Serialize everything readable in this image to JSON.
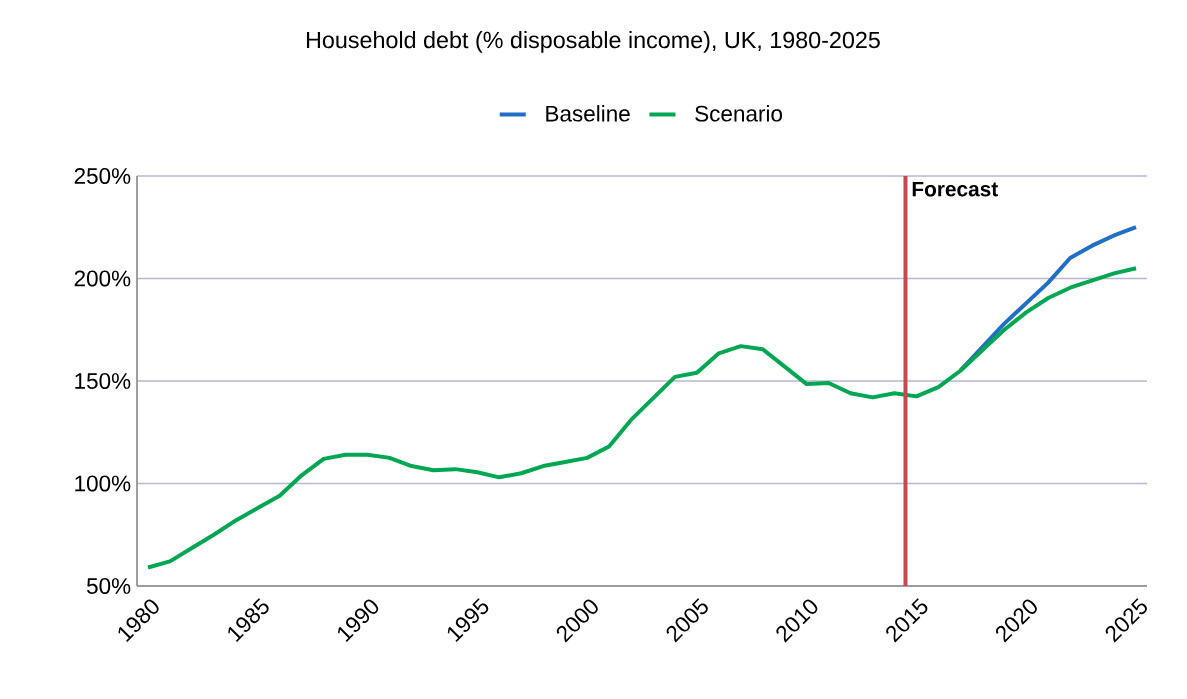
{
  "chart_data": {
    "type": "line",
    "title": "Household debt (% disposable income), UK, 1980-2025",
    "x": [
      1980,
      1981,
      1982,
      1983,
      1984,
      1985,
      1986,
      1987,
      1988,
      1989,
      1990,
      1991,
      1992,
      1993,
      1994,
      1995,
      1996,
      1997,
      1998,
      1999,
      2000,
      2001,
      2002,
      2003,
      2004,
      2005,
      2006,
      2007,
      2008,
      2009,
      2010,
      2011,
      2012,
      2013,
      2014,
      2015,
      2016,
      2017,
      2018,
      2019,
      2020,
      2021,
      2022,
      2023,
      2024,
      2025
    ],
    "series": [
      {
        "name": "Baseline",
        "color": "#1f6fc6",
        "values": [
          null,
          null,
          null,
          null,
          null,
          null,
          null,
          null,
          null,
          null,
          null,
          null,
          null,
          null,
          null,
          null,
          null,
          null,
          null,
          null,
          null,
          null,
          null,
          null,
          null,
          null,
          null,
          null,
          null,
          null,
          null,
          null,
          null,
          null,
          null,
          null,
          null,
          155,
          166.5,
          178,
          188,
          198,
          210,
          216,
          221,
          225
        ]
      },
      {
        "name": "Scenario",
        "color": "#00a651",
        "values": [
          59,
          62,
          68.5,
          75,
          82,
          88,
          94,
          104,
          112,
          114,
          114,
          112.5,
          108.5,
          106.5,
          107,
          105.5,
          103,
          105,
          108.5,
          110.5,
          112.5,
          118,
          131,
          141.5,
          152,
          154,
          163.5,
          167,
          165.5,
          157,
          148.5,
          149,
          144,
          142,
          144,
          142.5,
          147,
          155,
          165,
          175,
          183.5,
          190.5,
          195.5,
          199,
          202.5,
          205
        ]
      }
    ],
    "xlim": [
      1979.5,
      2025.5
    ],
    "xticks": [
      {
        "value": 1980,
        "label": "1980"
      },
      {
        "value": 1985,
        "label": "1985"
      },
      {
        "value": 1990,
        "label": "1990"
      },
      {
        "value": 1995,
        "label": "1995"
      },
      {
        "value": 2000,
        "label": "2000"
      },
      {
        "value": 2005,
        "label": "2005"
      },
      {
        "value": 2010,
        "label": "2010"
      },
      {
        "value": 2015,
        "label": "2015"
      },
      {
        "value": 2020,
        "label": "2020"
      },
      {
        "value": 2025,
        "label": "2025"
      }
    ],
    "ylim": [
      50,
      250
    ],
    "yticks": [
      {
        "value": 50,
        "label": "50%"
      },
      {
        "value": 100,
        "label": "100%"
      },
      {
        "value": 150,
        "label": "150%"
      },
      {
        "value": 200,
        "label": "200%"
      },
      {
        "value": 250,
        "label": "250%"
      }
    ],
    "grid": "y",
    "legend": "top",
    "marker": "none",
    "line_style": "solid",
    "ref_lines": [
      {
        "axis": "x",
        "value": 2014.5,
        "label": "Forecast",
        "color": "#c9474f"
      }
    ]
  }
}
